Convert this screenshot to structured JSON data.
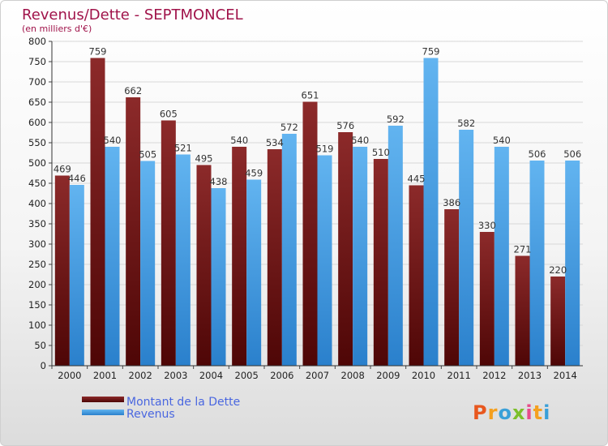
{
  "chart_data": {
    "type": "bar",
    "title": "Revenus/Dette - SEPTMONCEL",
    "subtitle": "(en milliers d'€)",
    "categories": [
      "2000",
      "2001",
      "2002",
      "2003",
      "2004",
      "2005",
      "2006",
      "2007",
      "2008",
      "2009",
      "2010",
      "2011",
      "2012",
      "2013",
      "2014"
    ],
    "series": [
      {
        "name": "Montant de la Dette",
        "values": [
          469,
          759,
          662,
          605,
          495,
          540,
          534,
          651,
          576,
          510,
          445,
          386,
          330,
          271,
          220
        ]
      },
      {
        "name": "Revenus",
        "values": [
          446,
          540,
          505,
          521,
          438,
          459,
          572,
          519,
          540,
          592,
          759,
          582,
          540,
          506,
          506
        ]
      }
    ],
    "ylim": [
      0,
      800
    ],
    "yticks": [
      0,
      50,
      100,
      150,
      200,
      250,
      300,
      350,
      400,
      450,
      500,
      550,
      600,
      650,
      700,
      750,
      800
    ],
    "grid": true,
    "legend_position": "bottom-left",
    "colors": {
      "dette": "#7a1f1f",
      "revenus": "#3a97e0",
      "title": "#a0134a",
      "legend_text": "#4a67e0"
    }
  },
  "logo": {
    "letters": [
      "P",
      "r",
      "o",
      "x",
      "i",
      "t",
      "i"
    ],
    "colors": [
      "#e8571e",
      "#f4a020",
      "#3aa0d8",
      "#7cbf2a",
      "#e84a8a",
      "#f4a020",
      "#3aa0d8"
    ]
  }
}
